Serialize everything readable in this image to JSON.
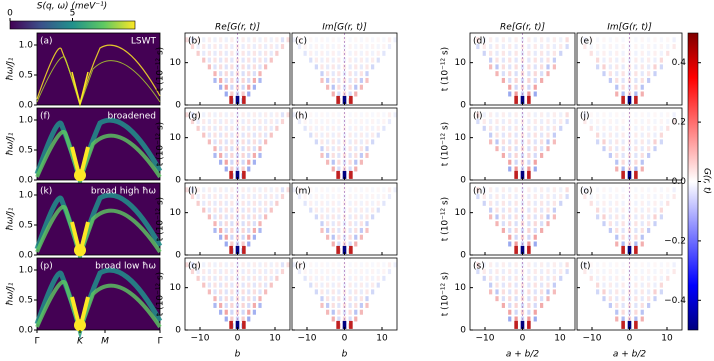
{
  "intensity_colorbar": {
    "label": "S(q, ω) (meV⁻¹)",
    "lim": [
      0,
      10
    ],
    "ticks": [
      0,
      5
    ]
  },
  "spectra": {
    "ylabel": "ħω/J₁",
    "ylim": [
      0,
      1.2
    ],
    "yticks": [
      {
        "value": 0,
        "label": "0.0"
      },
      0.5,
      {
        "value": 1,
        "label": "1.0"
      }
    ],
    "xticks": [
      "Γ",
      "K",
      "M",
      "Γ"
    ],
    "panels": [
      {
        "label": "(a)",
        "note": "LSWT"
      },
      {
        "label": "(f)",
        "note": "broadened"
      },
      {
        "label": "(k)",
        "note": "broad high ħω"
      },
      {
        "label": "(p)",
        "note": "broad low ħω"
      }
    ]
  },
  "correlation": {
    "ylabel": "t (10⁻¹² s)",
    "ylim": [
      0,
      17
    ],
    "yticks": [
      0,
      10
    ],
    "xlim": [
      -14,
      14
    ],
    "xticks": [
      {
        "value": -10,
        "label": "−10"
      },
      0,
      10
    ],
    "groups": [
      {
        "columns": [
          "Re[G(r, t)]",
          "Im[G(r, t)]"
        ],
        "xlabel": "b",
        "panels": [
          [
            "(b)",
            "(c)"
          ],
          [
            "(g)",
            "(h)"
          ],
          [
            "(l)",
            "(m)"
          ],
          [
            "(q)",
            "(r)"
          ]
        ]
      },
      {
        "columns": [
          "Re[G(r, t)]",
          "Im[G(r, t)]"
        ],
        "xlabel": "a + b/2",
        "panels": [
          [
            "(d)",
            "(e)"
          ],
          [
            "(i)",
            "(j)"
          ],
          [
            "(n)",
            "(o)"
          ],
          [
            "(s)",
            "(t)"
          ]
        ]
      }
    ]
  },
  "g_colorbar": {
    "label": "G(r, t)",
    "lim": [
      -0.5,
      0.5
    ],
    "ticks": [
      {
        "value": -0.4,
        "label": "−0.4"
      },
      {
        "value": -0.2,
        "label": "−0.2"
      },
      {
        "value": 0,
        "label": "0.0"
      },
      0.2,
      0.4
    ]
  }
}
